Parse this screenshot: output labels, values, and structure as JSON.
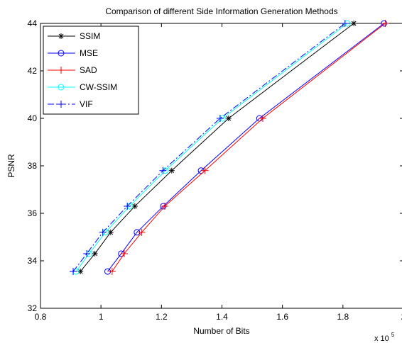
{
  "chart_data": {
    "type": "line",
    "title": "Comparison of different Side Information Generation Methods",
    "xlabel": "Number of Bits",
    "ylabel": "PSNR",
    "x_multiplier_label": "x 10",
    "x_multiplier_exponent": "5",
    "xlim": [
      0.8,
      2.0
    ],
    "ylim": [
      32,
      44
    ],
    "xticks": [
      0.8,
      1.0,
      1.2,
      1.4,
      1.6,
      1.8,
      2.0
    ],
    "xtick_labels": [
      "0.8",
      "1",
      "1.2",
      "1.4",
      "1.6",
      "1.8",
      "2"
    ],
    "yticks": [
      32,
      34,
      36,
      38,
      40,
      42,
      44
    ],
    "ytick_labels": [
      "32",
      "34",
      "36",
      "38",
      "40",
      "42",
      "44"
    ],
    "grid": false,
    "legend_position": "top-left",
    "series": [
      {
        "name": "SSIM",
        "color": "#000000",
        "marker": "star",
        "dash": "solid",
        "points": [
          [
            0.932,
            33.55
          ],
          [
            0.98,
            34.3
          ],
          [
            1.032,
            35.2
          ],
          [
            1.112,
            36.3
          ],
          [
            1.234,
            37.8
          ],
          [
            1.422,
            40.0
          ],
          [
            1.836,
            44.0
          ]
        ]
      },
      {
        "name": "MSE",
        "color": "#0000ff",
        "marker": "circle",
        "dash": "solid",
        "points": [
          [
            1.022,
            33.55
          ],
          [
            1.067,
            34.3
          ],
          [
            1.119,
            35.2
          ],
          [
            1.206,
            36.3
          ],
          [
            1.331,
            37.8
          ],
          [
            1.524,
            40.0
          ],
          [
            1.936,
            44.0
          ]
        ]
      },
      {
        "name": "SAD",
        "color": "#ff0000",
        "marker": "plus",
        "dash": "solid",
        "points": [
          [
            1.037,
            33.55
          ],
          [
            1.077,
            34.3
          ],
          [
            1.135,
            35.2
          ],
          [
            1.211,
            36.3
          ],
          [
            1.344,
            37.8
          ],
          [
            1.535,
            40.0
          ],
          [
            1.94,
            44.0
          ]
        ]
      },
      {
        "name": "CW-SSIM",
        "color": "#00ffff",
        "marker": "circle",
        "dash": "solid",
        "points": [
          [
            0.918,
            33.55
          ],
          [
            0.961,
            34.3
          ],
          [
            1.015,
            35.2
          ],
          [
            1.095,
            36.3
          ],
          [
            1.213,
            37.8
          ],
          [
            1.402,
            40.0
          ],
          [
            1.815,
            44.0
          ]
        ]
      },
      {
        "name": "VIF",
        "color": "#0000ff",
        "marker": "plus",
        "dash": "dashdot",
        "points": [
          [
            0.908,
            33.55
          ],
          [
            0.953,
            34.3
          ],
          [
            1.006,
            35.2
          ],
          [
            1.087,
            36.3
          ],
          [
            1.205,
            37.8
          ],
          [
            1.394,
            40.0
          ],
          [
            1.807,
            44.0
          ]
        ]
      }
    ]
  }
}
